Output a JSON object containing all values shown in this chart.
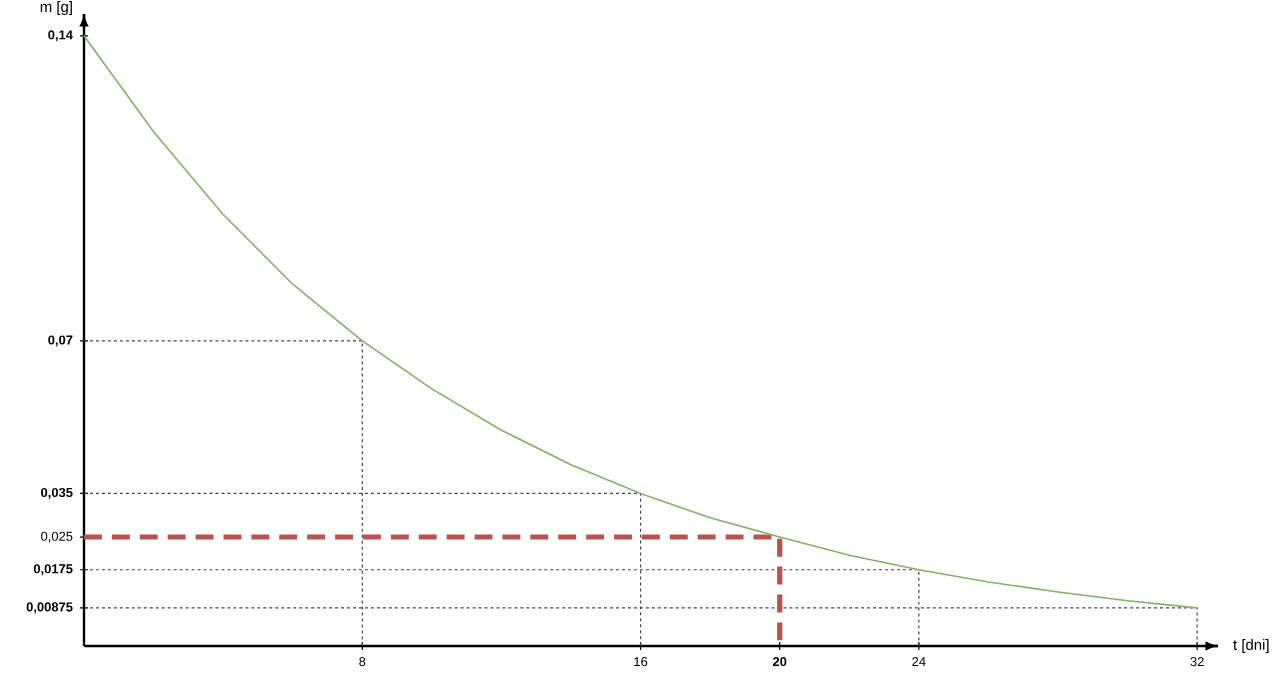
{
  "chart_data": {
    "type": "line",
    "xlabel": "t [dni]",
    "ylabel": "m [g]",
    "xlim": [
      0,
      32.6
    ],
    "ylim": [
      0,
      0.145
    ],
    "xticks": [
      {
        "value": 8,
        "label": "8"
      },
      {
        "value": 16,
        "label": "16"
      },
      {
        "value": 20,
        "label": "**20**"
      },
      {
        "value": 24,
        "label": "24"
      },
      {
        "value": 32,
        "label": "32"
      }
    ],
    "yticks": [
      {
        "value": 0.00875,
        "label": "**0,00875**"
      },
      {
        "value": 0.0175,
        "label": "**0,0175**"
      },
      {
        "value": 0.025,
        "label": "0,025"
      },
      {
        "value": 0.035,
        "label": "**0,035**"
      },
      {
        "value": 0.07,
        "label": "**0,07**"
      },
      {
        "value": 0.14,
        "label": "**0,14**"
      }
    ],
    "grid": false,
    "series": [
      {
        "color": "#82b366",
        "line_style": "solid",
        "x": [
          0,
          2,
          4,
          6,
          8,
          10,
          12,
          14,
          16,
          18,
          20,
          22,
          24,
          26,
          28,
          30,
          32
        ],
        "values": [
          0.14,
          0.118,
          0.099,
          0.083,
          0.07,
          0.059,
          0.0495,
          0.0416,
          0.035,
          0.0294,
          0.025,
          0.0208,
          0.0175,
          0.0147,
          0.0124,
          0.0104,
          0.00875
        ]
      },
      {
        "color": "#444444",
        "line_style": "dotted",
        "x": [
          0,
          8,
          8
        ],
        "values": [
          0.07,
          0.07,
          0
        ]
      },
      {
        "color": "#444444",
        "line_style": "dotted",
        "x": [
          0,
          16,
          16
        ],
        "values": [
          0.035,
          0.035,
          0
        ]
      },
      {
        "color": "#444444",
        "line_style": "dotted",
        "x": [
          0,
          24,
          24
        ],
        "values": [
          0.0175,
          0.0175,
          0
        ]
      },
      {
        "color": "#444444",
        "line_style": "dotted",
        "x": [
          0,
          32,
          32
        ],
        "values": [
          0.00875,
          0.00875,
          0
        ]
      },
      {
        "color": "#b85450",
        "line_style": "dashed",
        "x": [
          0,
          20,
          20
        ],
        "values": [
          0.025,
          0.025,
          0
        ]
      }
    ]
  }
}
